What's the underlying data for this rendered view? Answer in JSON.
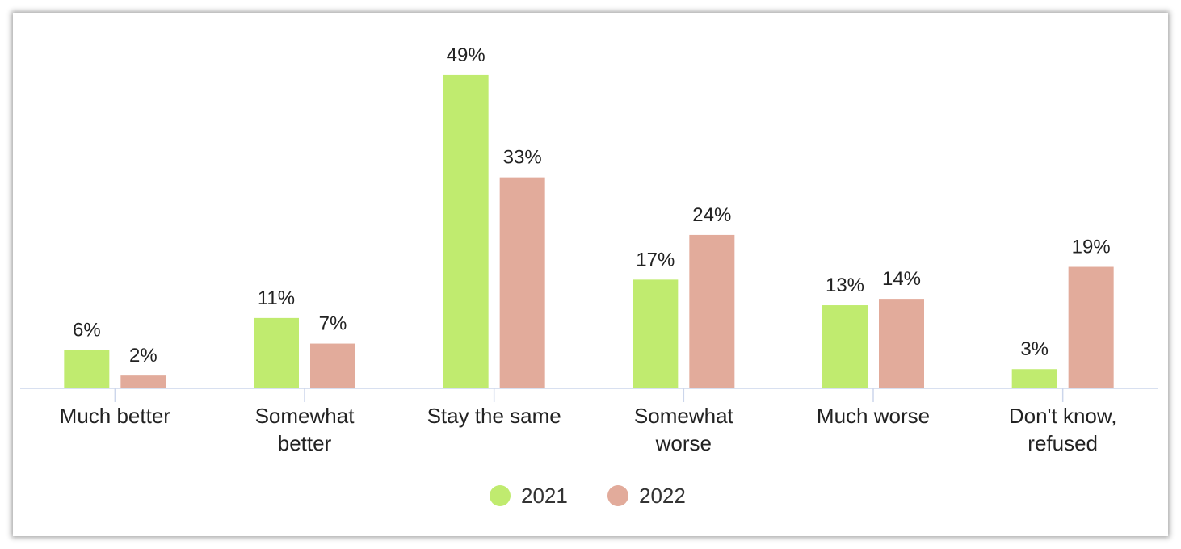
{
  "chart_data": {
    "type": "bar",
    "categories": [
      [
        "Much better"
      ],
      [
        "Somewhat",
        "better"
      ],
      [
        "Stay the same"
      ],
      [
        "Somewhat",
        "worse"
      ],
      [
        "Much worse"
      ],
      [
        "Don't know,",
        "refused"
      ]
    ],
    "series": [
      {
        "name": "2021",
        "color": "#c0eb6f",
        "values": [
          6,
          11,
          49,
          17,
          13,
          3
        ],
        "labels": [
          "6%",
          "11%",
          "49%",
          "17%",
          "13%",
          "3%"
        ]
      },
      {
        "name": "2022",
        "color": "#e2ab9b",
        "values": [
          2,
          7,
          33,
          24,
          14,
          19
        ],
        "labels": [
          "2%",
          "7%",
          "33%",
          "24%",
          "14%",
          "19%"
        ]
      }
    ],
    "ylim": [
      0,
      49
    ],
    "grid": false,
    "legend": "bottom-center",
    "axis_color": "#ccd6eb"
  }
}
